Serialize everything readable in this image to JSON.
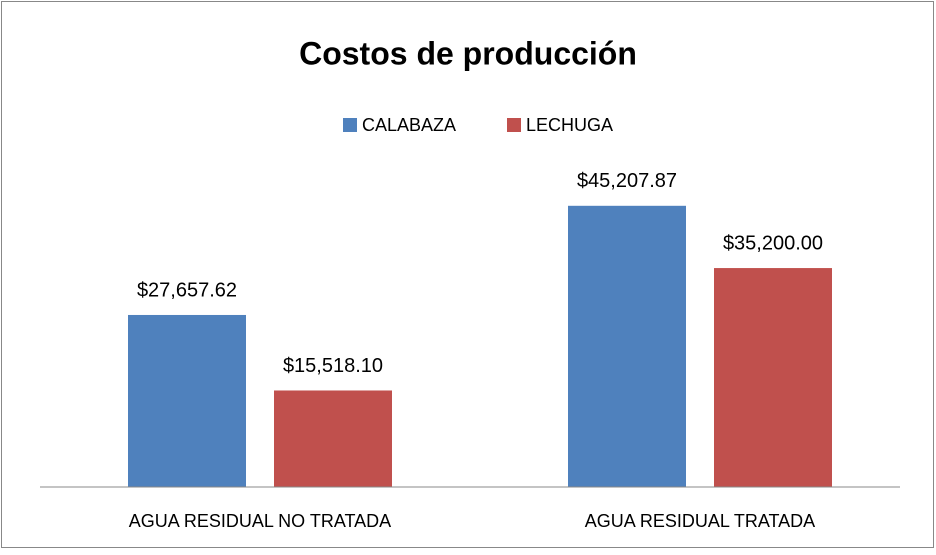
{
  "chart_data": {
    "type": "bar",
    "title": "Costos de producción",
    "categories": [
      "AGUA RESIDUAL NO TRATADA",
      "AGUA RESIDUAL TRATADA"
    ],
    "series": [
      {
        "name": "CALABAZA",
        "color": "#4f81bd",
        "values": [
          27657.62,
          45207.87
        ],
        "value_labels": [
          "$27,657.62",
          "$45,207.87"
        ]
      },
      {
        "name": "LECHUGA",
        "color": "#c0504d",
        "values": [
          15518.1,
          35200.0
        ],
        "value_labels": [
          "$15,518.10",
          "$35,200.00"
        ]
      }
    ],
    "ylim": [
      0,
      50000
    ],
    "legend": "top"
  }
}
